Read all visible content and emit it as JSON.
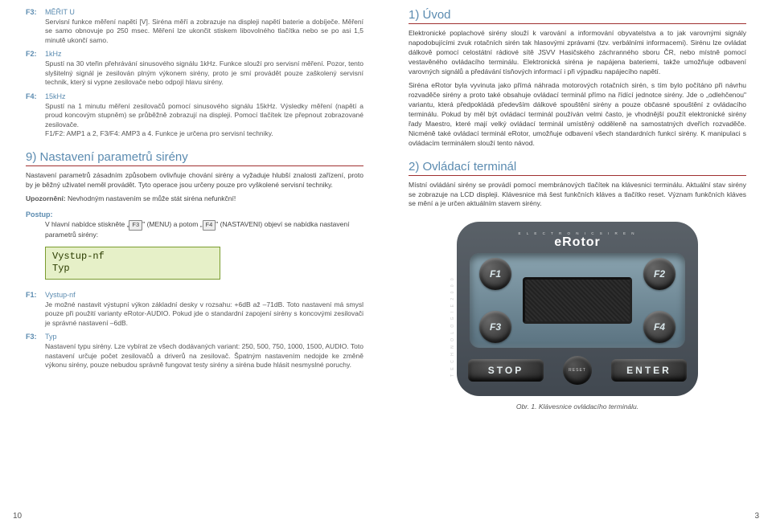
{
  "left": {
    "functions": [
      {
        "label": "F3:",
        "title": "MĚŘIT U",
        "text": "Servisní funkce měření napětí [V]. Siréna měří a zobrazuje na displeji napětí baterie a dobíječe. Měření se samo obnovuje po 250 msec. Měření lze ukončit stiskem libovolného tlačítka nebo se po asi 1,5 minutě ukončí samo."
      },
      {
        "label": "F2:",
        "title": "1kHz",
        "text": "Spustí na 30 vteřin přehrávání sinusového signálu 1kHz. Funkce slouží pro servisní měření. Pozor, tento slyšitelný signál je zesilován plným výkonem sirény, proto je smí provádět pouze zaškolený servisní technik, který si vypne zesilovače nebo odpojí hlavu sirény."
      },
      {
        "label": "F4:",
        "title": "15kHz",
        "text": "Spustí na 1 minutu měření zesilovačů pomocí sinusového signálu 15kHz. Výsledky měření (napětí a proud koncovým stupněm) se průběžně zobrazují na displeji. Pomocí tlačítek lze přepnout zobrazované zesilovače.\nF1/F2: AMP1 a 2, F3/F4: AMP3 a 4. Funkce je určena pro servisní techniky."
      }
    ],
    "section9": {
      "title": "9) Nastavení parametrů sirény",
      "para1": "Nastavení parametrů zásadním způsobem ovlivňuje chování sirény a vyžaduje hlubší znalosti zařízení, proto by je běžný uživatel neměl provádět. Tyto operace jsou určeny pouze pro vyškolené servisní techniky.",
      "warn_label": "Upozornění:",
      "warn_text": " Nevhodným nastavením se může stát siréna nefunkční!",
      "postup_label": "Postup:",
      "postup_text_1": "V hlavní nabídce stiskněte „",
      "postup_f3": "F3",
      "postup_text_2": "\" (MENU) a potom „",
      "postup_f4": "F4",
      "postup_text_3": "\" (NASTAVENI) objeví se nabídka nastavení parametrů sirény:",
      "lcd_line1": "Vystup-nf",
      "lcd_line2": "Typ"
    },
    "functions2": [
      {
        "label": "F1:",
        "title": "Vystup-nf",
        "text": "Je možné nastavit výstupní výkon základní desky v rozsahu: +6dB až –71dB. Toto nastavení má smysl pouze při použití varianty eRotor-AUDIO. Pokud jde o standardní zapojení sirény s koncovými zesilovači je správné nastavení –6dB."
      },
      {
        "label": "F3:",
        "title": "Typ",
        "text": "Nastavení typu sirény. Lze vybírat ze všech dodávaných variant: 250, 500, 750, 1000, 1500, AUDIO. Toto nastavení určuje počet zesilovačů a driverů na zesilovač. Špatným nastavením nedojde ke změně výkonu sirény, pouze nebudou správně fungovat testy sirény a siréna bude hlásit nesmyslné poruchy."
      }
    ],
    "page_num": "10"
  },
  "right": {
    "section1": {
      "title": "1) Úvod",
      "para1": "Elektronické poplachové sirény slouží k varování a informování obyvatelstva a to jak varovnými signály napodobujícími zvuk rotačních sirén tak hlasovými zprávami (tzv. verbálními informacemi). Sirénu lze ovládat dálkově pomocí celostátní rádiové sítě JSVV Hasičského záchranného sboru ČR, nebo místně pomocí vestavěného ovládacího terminálu. Elektronická siréna je napájena bateriemi, takže umožňuje odbavení varovných signálů a předávání tísňových informací i při výpadku napájecího napětí.",
      "para2": "Siréna eRotor byla vyvinuta jako přímá náhrada motorových rotačních sirén, s tím bylo počítáno při návrhu rozvaděče sirény a proto také obsahuje ovládací terminál přímo na řídící jednotce sirény. Jde o „odlehčenou\" variantu, která předpokládá především dálkové spouštění sirény a pouze občasné spouštění z ovládacího terminálu. Pokud by měl být ovládací terminál používán velmi často, je vhodnější použít elektronické sirény řady Maestro, které mají velký ovládací terminál umístěný odděleně na samostatných dveřích rozvaděče. Nicméně také ovládací terminál eRotor, umožňuje odbavení všech standardních funkcí sirény. K manipulaci s ovládacím terminálem slouží tento návod."
    },
    "section2": {
      "title": "2) Ovládací terminál",
      "para": "Místní ovládání sirény se provádí pomocí membránových tlačítek na klávesnici terminálu. Aktuální stav sirény se zobrazuje na LCD displeji. Klávesnice má šest funkčních kláves a tlačítko reset. Význam funkčních kláves se mění a je určen aktuálním stavem sirény."
    },
    "terminal": {
      "logo_small": "E L E C T R O N I C   S I R E N",
      "logo_big": "eRotor",
      "f1": "F1",
      "f2": "F2",
      "f3": "F3",
      "f4": "F4",
      "stop": "STOP",
      "enter": "ENTER",
      "reset": "RESET",
      "side_text": "T E C H N O L O G I E  2 0 0 0"
    },
    "fig_caption": "Obr. 1. Klávesnice ovládacího terminálu.",
    "page_num": "3"
  }
}
